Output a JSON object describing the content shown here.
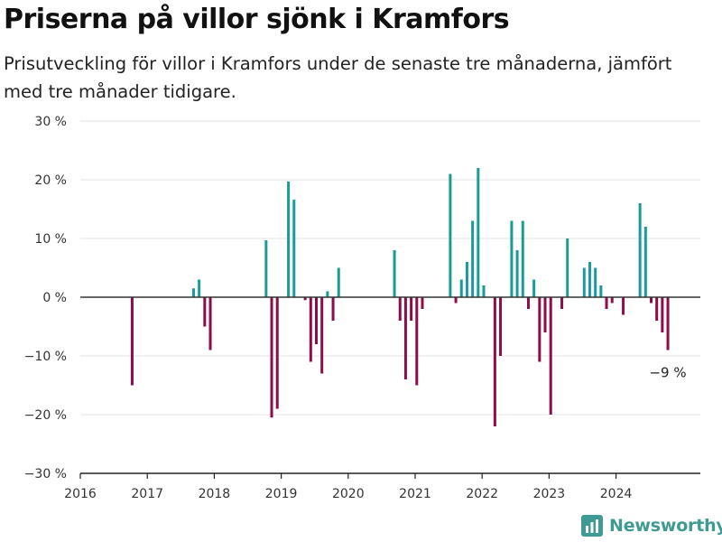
{
  "title": "Priserna på villor sjönk i Kramfors",
  "subtitle": "Prisutveckling för villor i Kramfors under de senaste tre månaderna, jämfört med tre månader tidigare.",
  "brand": "Newsworthy",
  "colors": {
    "positive": "#1a9c96",
    "negative": "#8c0d4a",
    "brand": "#3e9a92",
    "grid": "#e3e3e3",
    "zero": "#333333"
  },
  "chart_data": {
    "type": "bar",
    "title": "",
    "xlabel": "",
    "ylabel": "",
    "ylim": [
      -30,
      30
    ],
    "y_ticks": [
      30,
      20,
      10,
      0,
      -10,
      -20,
      -30
    ],
    "y_tick_labels": [
      "30 %",
      "20 %",
      "10 %",
      "0 %",
      "−10 %",
      "−20 %",
      "−30 %"
    ],
    "x_ticks": [
      "2016",
      "2017",
      "2018",
      "2019",
      "2020",
      "2021",
      "2022",
      "2023",
      "2024"
    ],
    "grid": true,
    "annotation": "−9 %",
    "x": [
      "2016-10",
      "2017-09",
      "2017-10",
      "2017-11",
      "2017-12",
      "2018-10",
      "2018-11",
      "2018-12",
      "2019-02",
      "2019-03",
      "2019-05",
      "2019-06",
      "2019-07",
      "2019-08",
      "2019-09",
      "2019-10",
      "2019-11",
      "2020-09",
      "2020-10",
      "2020-11",
      "2020-12",
      "2021-01",
      "2021-02",
      "2021-07",
      "2021-08",
      "2021-09",
      "2021-10",
      "2021-11",
      "2021-12",
      "2022-01",
      "2022-03",
      "2022-04",
      "2022-06",
      "2022-07",
      "2022-08",
      "2022-09",
      "2022-10",
      "2022-11",
      "2022-12",
      "2023-01",
      "2023-03",
      "2023-04",
      "2023-07",
      "2023-08",
      "2023-09",
      "2023-10",
      "2023-11",
      "2023-12",
      "2024-02",
      "2024-05",
      "2024-06",
      "2024-07",
      "2024-08",
      "2024-09",
      "2024-10"
    ],
    "values": [
      -15,
      1.5,
      3,
      -5,
      -9,
      9.7,
      -20.5,
      -19,
      19.7,
      16.6,
      -0.5,
      -11,
      -8,
      -13,
      1,
      -4,
      5,
      8,
      -4,
      -14,
      -4,
      -15,
      -2,
      21,
      -1,
      3,
      6,
      13,
      22,
      2,
      -22,
      -10,
      13,
      8,
      13,
      -2,
      3,
      -11,
      -6,
      -20,
      -2,
      10,
      5,
      6,
      5,
      2,
      -2,
      -1,
      -3,
      16,
      12,
      -1,
      -4,
      -6,
      -9
    ]
  }
}
